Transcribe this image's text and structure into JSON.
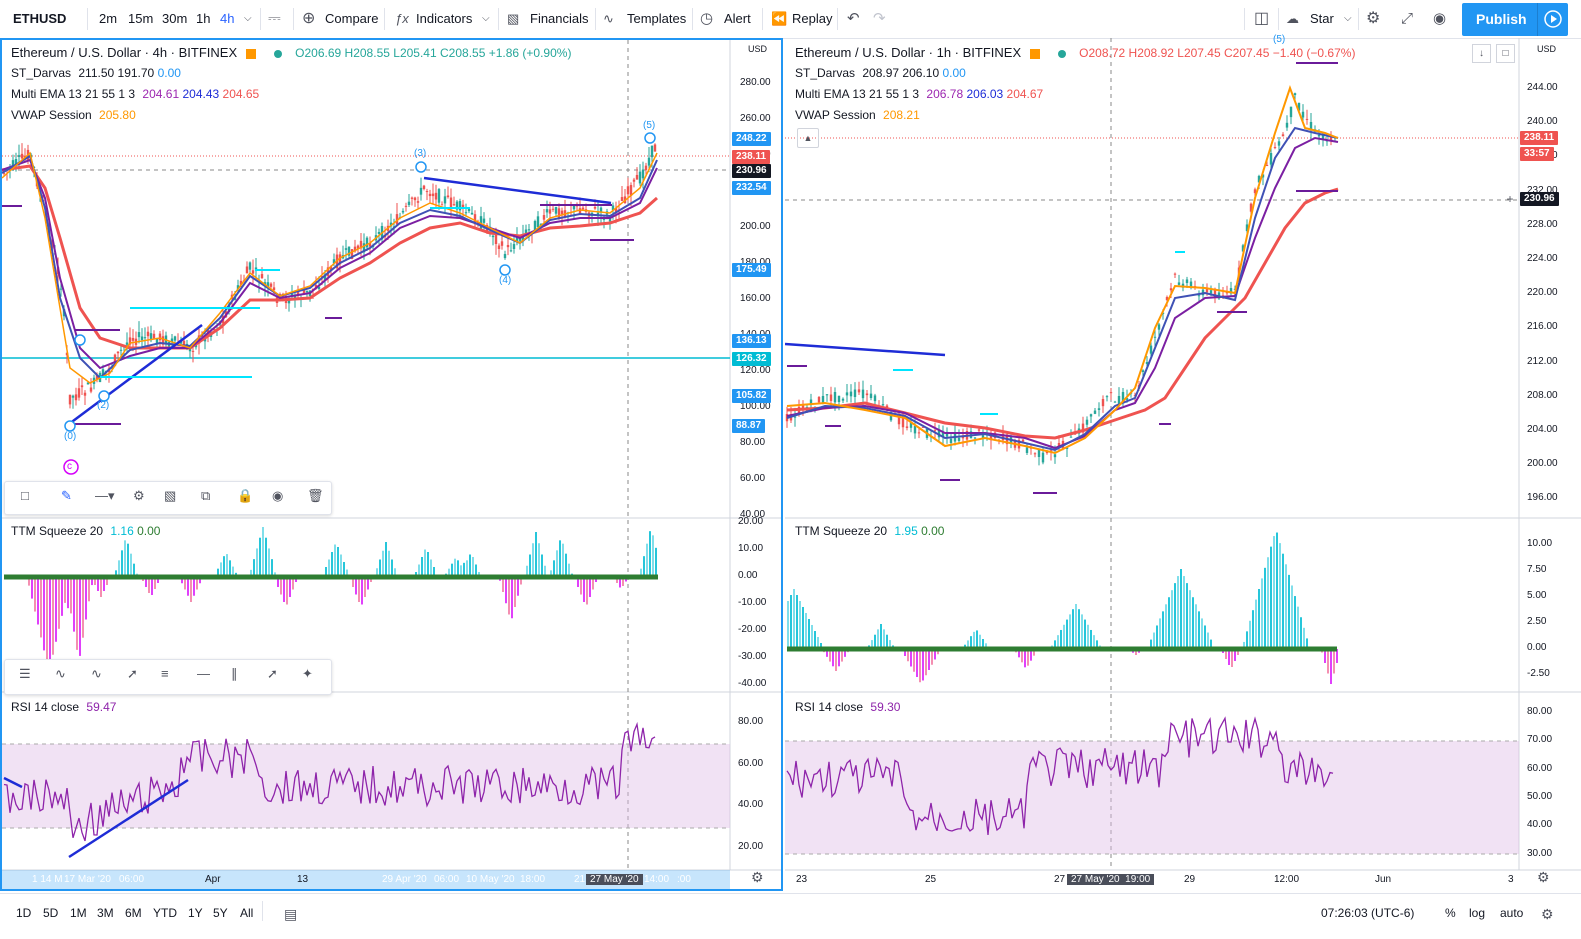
{
  "toolbar": {
    "symbol": "ETHUSD",
    "intervals": [
      "2m",
      "15m",
      "30m",
      "1h",
      "4h"
    ],
    "active_interval": "4h",
    "compare": "Compare",
    "indicators": "Indicators",
    "financials": "Financials",
    "templates": "Templates",
    "alert": "Alert",
    "replay": "Replay",
    "star": "Star",
    "publish": "Publish"
  },
  "left": {
    "title": "Ethereum / U.S. Dollar · 4h · BITFINEX",
    "ohlc": {
      "o": "O206.69",
      "h": "H208.55",
      "l": "L205.41",
      "c": "C208.55",
      "chg": "+1.86 (+0.90%)"
    },
    "darvas": {
      "name": "ST_Darvas",
      "v1": "211.50",
      "v2": "191.70",
      "v3": "0.00"
    },
    "ema": {
      "name": "Multi EMA 13 21 55 1 3",
      "v1": "204.61",
      "v2": "204.43",
      "v3": "204.65"
    },
    "vwap": {
      "name": "VWAP Session",
      "v": "205.80"
    },
    "currency": "USD",
    "yticks": [
      "280.00",
      "260.00",
      "240.00",
      "220.00",
      "200.00",
      "180.00",
      "160.00",
      "140.00",
      "120.00",
      "100.00",
      "80.00",
      "60.00",
      "40.00"
    ],
    "tags": [
      {
        "v": "248.22",
        "c": "#2196f3"
      },
      {
        "v": "238.11",
        "c": "#ef5350"
      },
      {
        "v": "230.96",
        "c": "#131722"
      },
      {
        "v": "232.54",
        "c": "#2196f3"
      },
      {
        "v": "175.49",
        "c": "#2196f3"
      },
      {
        "v": "136.13",
        "c": "#2196f3"
      },
      {
        "v": "126.32",
        "c": "#00bcd4"
      },
      {
        "v": "105.82",
        "c": "#2196f3"
      },
      {
        "v": "88.87",
        "c": "#2196f3"
      }
    ],
    "waves": [
      "(0)",
      "(2)",
      "(3)",
      "(4)",
      "(5)",
      "c"
    ],
    "ttm": {
      "name": "TTM Squeeze 20",
      "v1": "1.16",
      "v2": "0.00",
      "ticks": [
        "20.00",
        "10.00",
        "0.00",
        "-10.00",
        "-20.00",
        "-30.00",
        "-40.00"
      ]
    },
    "rsi": {
      "name": "RSI 14 close",
      "v": "59.47",
      "ticks": [
        "80.00",
        "60.00",
        "40.00",
        "20.00"
      ]
    },
    "xticks": [
      "1 14 M",
      "17 Mar '20",
      "06:00",
      "Apr",
      "13",
      "29 Apr '20",
      "06:00",
      "10 May '20",
      "18:00",
      "21",
      "27 May '20",
      "14:00",
      ":00"
    ]
  },
  "right": {
    "title": "Ethereum / U.S. Dollar · 1h · BITFINEX",
    "ohlc": {
      "o": "O208.72",
      "h": "H208.92",
      "l": "L207.45",
      "c": "C207.45",
      "chg": "−1.40 (−0.67%)"
    },
    "darvas": {
      "name": "ST_Darvas",
      "v1": "208.97",
      "v2": "206.10",
      "v3": "0.00"
    },
    "ema": {
      "name": "Multi EMA 13 21 55 1 3",
      "v1": "206.78",
      "v2": "206.03",
      "v3": "204.67"
    },
    "vwap": {
      "name": "VWAP Session",
      "v": "208.21"
    },
    "currency": "USD",
    "yticks": [
      "244.00",
      "240.00",
      "236.00",
      "232.00",
      "228.00",
      "224.00",
      "220.00",
      "216.00",
      "212.00",
      "208.00",
      "204.00",
      "200.00",
      "196.00"
    ],
    "tags": [
      {
        "v": "238.11",
        "c": "#ef5350"
      },
      {
        "v": "33:57",
        "c": "#ef5350"
      },
      {
        "v": "230.96",
        "c": "#131722"
      }
    ],
    "wave": "(5)",
    "ttm": {
      "name": "TTM Squeeze 20",
      "v1": "1.95",
      "v2": "0.00",
      "ticks": [
        "10.00",
        "7.50",
        "5.00",
        "2.50",
        "0.00",
        "-2.50"
      ]
    },
    "rsi": {
      "name": "RSI 14 close",
      "v": "59.30",
      "ticks": [
        "80.00",
        "70.00",
        "60.00",
        "50.00",
        "40.00",
        "30.00"
      ]
    },
    "xticks": [
      "23",
      "25",
      "27",
      "27 May '20",
      "19:00",
      "29",
      "12:00",
      "Jun",
      "3"
    ]
  },
  "bottom": {
    "ranges": [
      "1D",
      "5D",
      "1M",
      "3M",
      "6M",
      "YTD",
      "1Y",
      "5Y",
      "All"
    ],
    "time": "07:26:03 (UTC-6)",
    "pct": "%",
    "log": "log",
    "auto": "auto"
  },
  "colors": {
    "up": "#26a69a",
    "down": "#ef5350",
    "ema1": "#ff9800",
    "ema2": "#9c27b0",
    "ema3": "#ef5350",
    "accent": "#2196f3"
  }
}
